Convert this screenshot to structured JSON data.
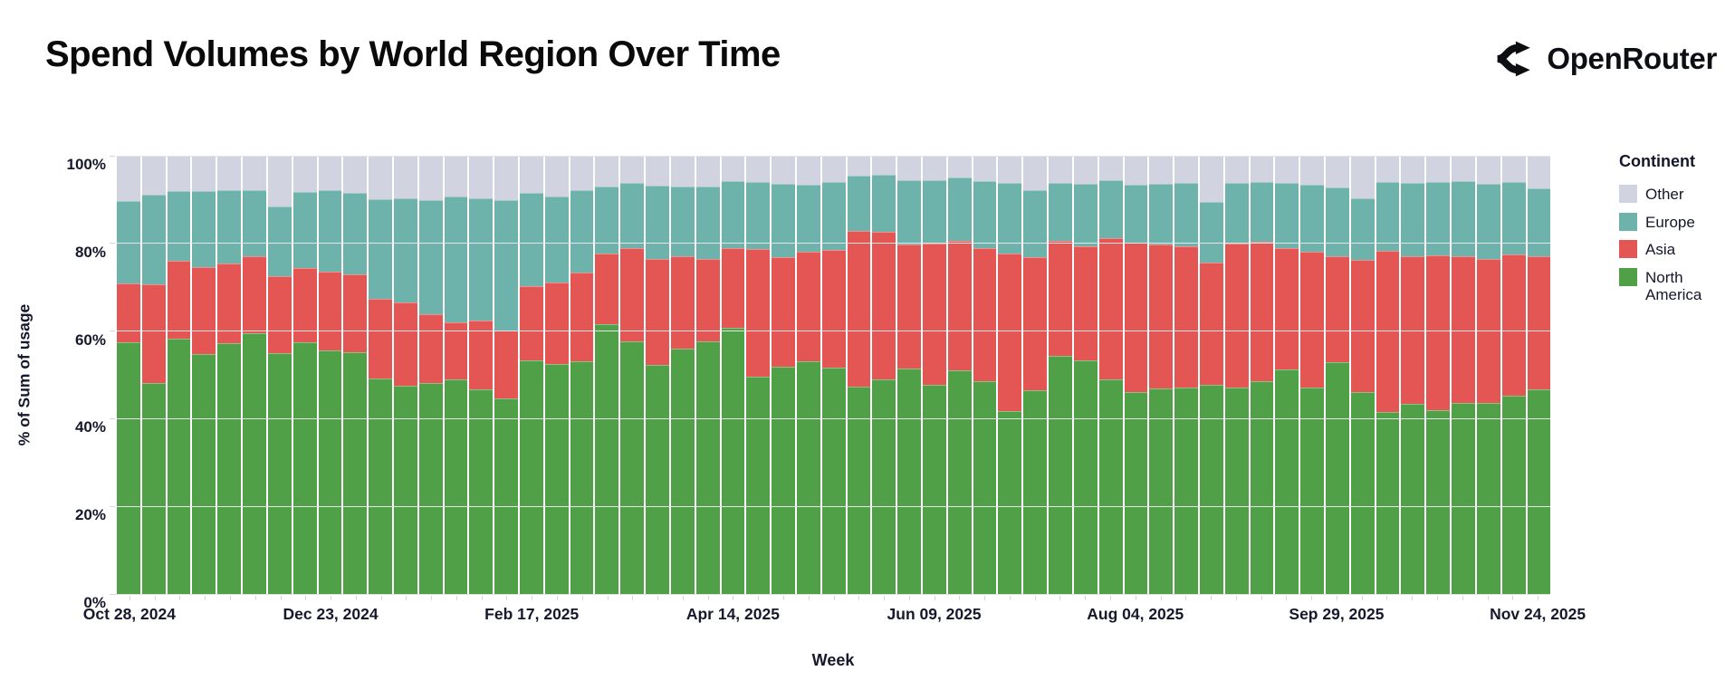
{
  "header": {
    "title": "Spend Volumes by World Region Over Time",
    "brand": "OpenRouter"
  },
  "chart_data": {
    "type": "bar",
    "stacked": true,
    "normalized_percent": true,
    "title": "Spend Volumes by World Region Over Time",
    "xlabel": "Week",
    "ylabel": "% of Sum of usage",
    "ylim": [
      0,
      100
    ],
    "grid": true,
    "y_tick_values": [
      0,
      20,
      40,
      60,
      80,
      100
    ],
    "y_tick_labels": [
      "0%",
      "20%",
      "40%",
      "60%",
      "80%",
      "100%"
    ],
    "x_tick_labels": [
      {
        "index": 0,
        "label": "Oct 28, 2024"
      },
      {
        "index": 8,
        "label": "Dec 23, 2024"
      },
      {
        "index": 16,
        "label": "Feb 17, 2025"
      },
      {
        "index": 24,
        "label": "Apr 14, 2025"
      },
      {
        "index": 32,
        "label": "Jun 09, 2025"
      },
      {
        "index": 40,
        "label": "Aug 04, 2025"
      },
      {
        "index": 48,
        "label": "Sep 29, 2025"
      },
      {
        "index": 56,
        "label": "Nov 24, 2025"
      }
    ],
    "categories": [
      "Oct 28, 2024",
      "Nov 04, 2024",
      "Nov 11, 2024",
      "Nov 18, 2024",
      "Nov 25, 2024",
      "Dec 02, 2024",
      "Dec 09, 2024",
      "Dec 16, 2024",
      "Dec 23, 2024",
      "Dec 30, 2024",
      "Jan 06, 2025",
      "Jan 13, 2025",
      "Jan 20, 2025",
      "Jan 27, 2025",
      "Feb 03, 2025",
      "Feb 10, 2025",
      "Feb 17, 2025",
      "Feb 24, 2025",
      "Mar 03, 2025",
      "Mar 10, 2025",
      "Mar 17, 2025",
      "Mar 24, 2025",
      "Mar 31, 2025",
      "Apr 07, 2025",
      "Apr 14, 2025",
      "Apr 21, 2025",
      "Apr 28, 2025",
      "May 05, 2025",
      "May 12, 2025",
      "May 19, 2025",
      "May 26, 2025",
      "Jun 02, 2025",
      "Jun 09, 2025",
      "Jun 16, 2025",
      "Jun 23, 2025",
      "Jun 30, 2025",
      "Jul 07, 2025",
      "Jul 14, 2025",
      "Jul 21, 2025",
      "Jul 28, 2025",
      "Aug 04, 2025",
      "Aug 11, 2025",
      "Aug 18, 2025",
      "Aug 25, 2025",
      "Sep 01, 2025",
      "Sep 08, 2025",
      "Sep 15, 2025",
      "Sep 22, 2025",
      "Sep 29, 2025",
      "Oct 06, 2025",
      "Oct 13, 2025",
      "Oct 20, 2025",
      "Oct 27, 2025",
      "Nov 03, 2025",
      "Nov 10, 2025",
      "Nov 17, 2025",
      "Nov 24, 2025"
    ],
    "series": [
      {
        "name": "North America",
        "color": "#4fa047",
        "values": [
          57.5,
          48.2,
          58.5,
          54.9,
          57.3,
          59.7,
          55.2,
          57.6,
          55.7,
          55.4,
          49.2,
          47.7,
          48.2,
          49.0,
          46.7,
          44.7,
          53.5,
          52.5,
          53.3,
          61.7,
          57.8,
          52.3,
          56.1,
          57.8,
          60.9,
          49.6,
          52.0,
          53.3,
          51.8,
          47.5,
          49.0,
          51.6,
          47.8,
          51.1,
          48.7,
          41.8,
          46.5,
          54.4,
          53.5,
          49.0,
          46.1,
          46.9,
          47.1,
          47.8,
          47.1,
          48.7,
          51.3,
          47.1,
          53.1,
          46.2,
          41.6,
          43.5,
          42.0,
          43.7,
          43.7,
          45.4,
          46.8
        ]
      },
      {
        "name": "Asia",
        "color": "#e45654",
        "values": [
          13.3,
          22.5,
          17.5,
          19.8,
          18.2,
          17.5,
          17.3,
          16.9,
          17.9,
          17.5,
          18.2,
          18.8,
          15.6,
          12.9,
          15.7,
          15.4,
          16.7,
          18.6,
          20.0,
          16.1,
          21.3,
          24.2,
          21.1,
          18.7,
          18.0,
          29.1,
          24.9,
          24.8,
          26.7,
          35.4,
          33.8,
          28.2,
          32.2,
          29.6,
          30.4,
          36.0,
          30.4,
          26.3,
          25.9,
          32.2,
          34.1,
          32.9,
          32.3,
          27.9,
          32.9,
          31.7,
          27.7,
          31.0,
          24.1,
          30.0,
          36.7,
          33.7,
          35.4,
          33.4,
          32.8,
          32.2,
          30.4
        ]
      },
      {
        "name": "Europe",
        "color": "#6db3ab",
        "values": [
          18.9,
          20.4,
          15.9,
          17.2,
          16.6,
          14.9,
          15.8,
          17.2,
          18.6,
          18.5,
          22.6,
          23.8,
          26.0,
          28.7,
          27.8,
          29.7,
          21.3,
          19.6,
          18.8,
          15.1,
          14.7,
          16.6,
          15.7,
          16.4,
          15.2,
          15.2,
          16.7,
          15.3,
          15.4,
          12.6,
          12.9,
          14.6,
          14.3,
          14.3,
          15.0,
          15.9,
          15.3,
          13.0,
          14.2,
          13.1,
          13.2,
          13.8,
          14.3,
          13.6,
          13.8,
          13.5,
          14.7,
          15.3,
          15.6,
          14.1,
          15.7,
          16.5,
          16.5,
          17.0,
          17.1,
          16.3,
          15.4
        ]
      },
      {
        "name": "Other",
        "color": "#d1d4e0",
        "values": [
          10.3,
          8.9,
          8.1,
          8.1,
          7.9,
          7.9,
          11.7,
          8.3,
          7.8,
          8.6,
          10.0,
          9.7,
          10.2,
          9.4,
          9.8,
          10.2,
          8.5,
          9.3,
          7.9,
          7.1,
          6.2,
          6.9,
          7.1,
          7.1,
          5.9,
          6.1,
          6.4,
          6.6,
          6.1,
          4.5,
          4.3,
          5.6,
          5.7,
          5.0,
          5.9,
          6.3,
          7.8,
          6.3,
          6.4,
          5.7,
          6.6,
          6.4,
          6.3,
          10.7,
          6.2,
          6.1,
          6.3,
          6.6,
          7.2,
          9.7,
          6.0,
          6.3,
          6.1,
          5.9,
          6.4,
          6.1,
          7.4
        ]
      }
    ],
    "legend": {
      "title": "Continent",
      "position": "right",
      "entries": [
        "Other",
        "Europe",
        "Asia",
        "North America"
      ]
    }
  }
}
